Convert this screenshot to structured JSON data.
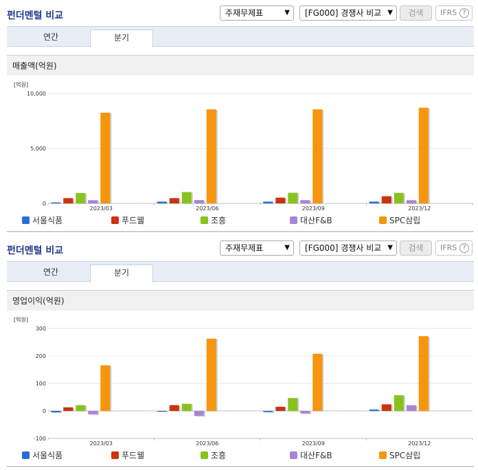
{
  "panels": [
    {
      "header": {
        "title": "펀더멘털 비교",
        "select1": "주재무제표",
        "select2": "[FG000] 경쟁사 비교",
        "search_label": "검색",
        "ifrs_label": "IFRS",
        "help_glyph": "?"
      },
      "tabs": [
        {
          "label": "연간",
          "active": false
        },
        {
          "label": "분기",
          "active": true
        }
      ],
      "chart_title": "매출액(억원)"
    },
    {
      "header": {
        "title": "펀더멘털 비교",
        "select1": "주재무제표",
        "select2": "[FG000] 경쟁사 비교",
        "search_label": "검색",
        "ifrs_label": "IFRS",
        "help_glyph": "?"
      },
      "tabs": [
        {
          "label": "연간",
          "active": false
        },
        {
          "label": "분기",
          "active": true
        }
      ],
      "chart_title": "영업이익(억원)"
    }
  ],
  "colors": {
    "서울식품": "#2a6fd6",
    "푸드웰": "#cc3311",
    "조흥": "#88c220",
    "대산F&B": "#a884d8",
    "SPC삼립": "#f7950e"
  },
  "chart_data": [
    {
      "type": "bar",
      "unit_label": "[억원]",
      "categories": [
        "2023/03",
        "2023/06",
        "2023/09",
        "2023/12"
      ],
      "ylim": [
        0,
        10000
      ],
      "ticks": [
        0,
        5000,
        10000
      ],
      "tick_labels": [
        "0",
        "5,000",
        "10,000"
      ],
      "grid": true,
      "legend_position": "bottom",
      "series": [
        {
          "name": "서울식품",
          "values": [
            90,
            160,
            160,
            160
          ]
        },
        {
          "name": "푸드웰",
          "values": [
            480,
            480,
            520,
            650
          ]
        },
        {
          "name": "조흥",
          "values": [
            950,
            1030,
            970,
            960
          ]
        },
        {
          "name": "대산F&B",
          "values": [
            290,
            300,
            300,
            290
          ]
        },
        {
          "name": "SPC삼립",
          "values": [
            8250,
            8550,
            8550,
            8700
          ]
        }
      ]
    },
    {
      "type": "bar",
      "unit_label": "[억원]",
      "categories": [
        "2023/03",
        "2023/06",
        "2023/09",
        "2023/12"
      ],
      "ylim": [
        -100,
        300
      ],
      "ticks": [
        -100,
        0,
        100,
        200,
        300
      ],
      "tick_labels": [
        "-100",
        "0",
        "100",
        "200",
        "300"
      ],
      "grid": true,
      "legend_position": "bottom",
      "series": [
        {
          "name": "서울식품",
          "values": [
            -5,
            0,
            -4,
            5
          ]
        },
        {
          "name": "푸드웰",
          "values": [
            13,
            21,
            15,
            24
          ]
        },
        {
          "name": "조흥",
          "values": [
            21,
            26,
            47,
            57
          ]
        },
        {
          "name": "대산F&B",
          "values": [
            -12,
            -18,
            -9,
            21
          ]
        },
        {
          "name": "SPC삼립",
          "values": [
            166,
            263,
            208,
            272
          ]
        }
      ]
    }
  ]
}
